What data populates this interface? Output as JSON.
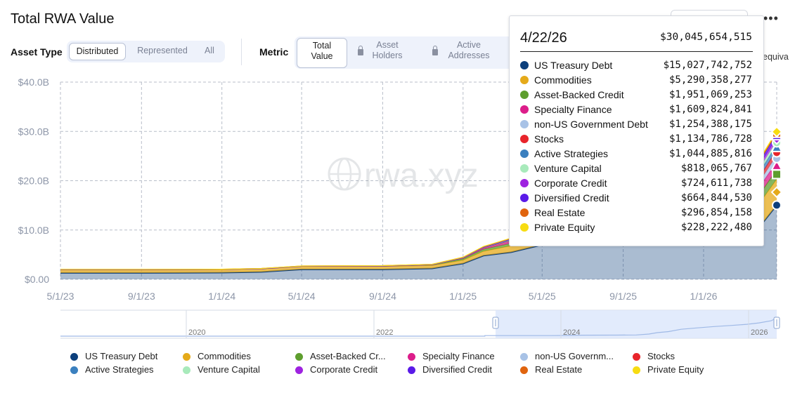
{
  "title": "Total RWA Value",
  "asset_type": {
    "label": "Asset Type",
    "options": [
      "Distributed",
      "Represented",
      "All"
    ],
    "selected": "Distributed"
  },
  "metric": {
    "label": "Metric",
    "options": [
      {
        "line1": "Total",
        "line2": "Value",
        "locked": false
      },
      {
        "line1": "Asset",
        "line2": "Holders",
        "locked": true
      },
      {
        "line1": "Active",
        "line2": "Addresses",
        "locked": true
      }
    ],
    "selected": "Total Value"
  },
  "equiv_fragment": "equiva",
  "colors": {
    "us_treasury_debt": "#0c3f7c",
    "commodities": "#e5aa1a",
    "asset_backed_credit": "#5e9e2e",
    "specialty_finance": "#dc1d8a",
    "non_us_government_debt": "#a8c2e6",
    "stocks": "#e8242b",
    "active_strategies": "#3b80bf",
    "venture_capital": "#a8eabb",
    "corporate_credit": "#9e22e0",
    "diversified_credit": "#5a1ae8",
    "real_estate": "#e0640e",
    "private_equity": "#f7dc12"
  },
  "watermark": "rwa.xyz",
  "tooltip": {
    "date": "4/22/26",
    "total": "$30,045,654,515",
    "rows": [
      {
        "name": "US Treasury Debt",
        "value": "$15,027,742,752",
        "color": "#0c3f7c"
      },
      {
        "name": "Commodities",
        "value": "$5,290,358,277",
        "color": "#e5aa1a"
      },
      {
        "name": "Asset-Backed Credit",
        "value": "$1,951,069,253",
        "color": "#5e9e2e"
      },
      {
        "name": "Specialty Finance",
        "value": "$1,609,824,841",
        "color": "#dc1d8a"
      },
      {
        "name": "non-US Government Debt",
        "value": "$1,254,388,175",
        "color": "#a8c2e6"
      },
      {
        "name": "Stocks",
        "value": "$1,134,786,728",
        "color": "#e8242b"
      },
      {
        "name": "Active Strategies",
        "value": "$1,044,885,816",
        "color": "#3b80bf"
      },
      {
        "name": "Venture Capital",
        "value": "$818,065,767",
        "color": "#a8eabb"
      },
      {
        "name": "Corporate Credit",
        "value": "$724,611,738",
        "color": "#9e22e0"
      },
      {
        "name": "Diversified Credit",
        "value": "$664,844,530",
        "color": "#5a1ae8"
      },
      {
        "name": "Real Estate",
        "value": "$296,854,158",
        "color": "#e0640e"
      },
      {
        "name": "Private Equity",
        "value": "$228,222,480",
        "color": "#f7dc12"
      }
    ]
  },
  "legend": [
    {
      "label": "US Treasury Debt",
      "color": "#0c3f7c"
    },
    {
      "label": "Commodities",
      "color": "#e5aa1a"
    },
    {
      "label": "Asset-Backed Cr...",
      "color": "#5e9e2e"
    },
    {
      "label": "Specialty Finance",
      "color": "#dc1d8a"
    },
    {
      "label": "non-US Governm...",
      "color": "#a8c2e6"
    },
    {
      "label": "Stocks",
      "color": "#e8242b"
    },
    {
      "label": "Active Strategies",
      "color": "#3b80bf"
    },
    {
      "label": "Venture Capital",
      "color": "#a8eabb"
    },
    {
      "label": "Corporate Credit",
      "color": "#9e22e0"
    },
    {
      "label": "Diversified Credit",
      "color": "#5a1ae8"
    },
    {
      "label": "Real Estate",
      "color": "#e0640e"
    },
    {
      "label": "Private Equity",
      "color": "#f7dc12"
    }
  ],
  "chart_data": {
    "type": "area",
    "stacked": true,
    "y_ticks": [
      "$0.00",
      "$10.0B",
      "$20.0B",
      "$30.0B",
      "$40.0B"
    ],
    "y_tick_values": [
      0,
      10,
      20,
      30,
      40
    ],
    "ylim": [
      0,
      40
    ],
    "y_unit": "billions USD",
    "x_ticks": [
      "5/1/23",
      "9/1/23",
      "1/1/24",
      "5/1/24",
      "9/1/24",
      "1/1/25",
      "5/1/25",
      "9/1/25",
      "1/1/26"
    ],
    "x_range": [
      "5/1/23",
      "4/22/26"
    ],
    "grid": true,
    "x": [
      "5/1/23",
      "9/1/23",
      "1/1/24",
      "3/1/24",
      "5/1/24",
      "9/1/24",
      "11/15/24",
      "1/1/25",
      "2/1/25",
      "3/15/25",
      "5/1/25",
      "7/1/25",
      "9/1/25",
      "11/1/25",
      "1/1/26",
      "2/15/26",
      "4/1/26",
      "4/22/26"
    ],
    "series": [
      {
        "name": "US Treasury Debt",
        "values": [
          1.3,
          1.3,
          1.35,
          1.5,
          2.0,
          2.0,
          2.2,
          3.2,
          4.8,
          5.5,
          7.0,
          7.5,
          7.8,
          8.0,
          8.5,
          9.5,
          11.5,
          15.03
        ]
      },
      {
        "name": "Commodities",
        "values": [
          0.6,
          0.6,
          0.6,
          0.6,
          0.6,
          0.6,
          0.6,
          0.7,
          0.9,
          1.3,
          2.5,
          2.9,
          3.2,
          3.5,
          4.0,
          4.4,
          4.9,
          5.29
        ]
      },
      {
        "name": "Asset-Backed Credit",
        "values": [
          0.05,
          0.05,
          0.05,
          0.05,
          0.05,
          0.1,
          0.15,
          0.3,
          0.4,
          0.5,
          0.6,
          0.8,
          1.0,
          1.2,
          1.4,
          1.6,
          1.8,
          1.95
        ]
      },
      {
        "name": "Specialty Finance",
        "values": [
          0,
          0,
          0,
          0,
          0,
          0,
          0.02,
          0.1,
          0.2,
          0.4,
          0.7,
          1.0,
          1.2,
          1.3,
          1.4,
          1.5,
          1.55,
          1.61
        ]
      },
      {
        "name": "non-US Government Debt",
        "values": [
          0,
          0,
          0,
          0,
          0,
          0,
          0,
          0.05,
          0.1,
          0.15,
          0.25,
          0.4,
          0.6,
          0.8,
          0.9,
          1.0,
          1.1,
          1.25
        ]
      },
      {
        "name": "Stocks",
        "values": [
          0,
          0,
          0,
          0,
          0,
          0,
          0,
          0,
          0.02,
          0.05,
          0.1,
          0.25,
          0.4,
          0.6,
          0.8,
          0.9,
          1.0,
          1.13
        ]
      },
      {
        "name": "Active Strategies",
        "values": [
          0,
          0,
          0,
          0,
          0,
          0,
          0,
          0.02,
          0.05,
          0.1,
          0.2,
          0.4,
          0.6,
          0.7,
          0.8,
          0.9,
          1.0,
          1.04
        ]
      },
      {
        "name": "Venture Capital",
        "values": [
          0,
          0,
          0,
          0,
          0,
          0,
          0,
          0.01,
          0.05,
          0.1,
          0.2,
          0.3,
          0.4,
          0.5,
          0.6,
          0.7,
          0.8,
          0.82
        ]
      },
      {
        "name": "Corporate Credit",
        "values": [
          0,
          0,
          0,
          0,
          0,
          0,
          0,
          0,
          0.01,
          0.05,
          0.1,
          0.2,
          0.4,
          0.5,
          0.55,
          0.6,
          0.7,
          0.72
        ]
      },
      {
        "name": "Diversified Credit",
        "values": [
          0,
          0,
          0,
          0,
          0,
          0,
          0,
          0,
          0.01,
          0.05,
          0.1,
          0.2,
          0.35,
          0.45,
          0.5,
          0.55,
          0.6,
          0.66
        ]
      },
      {
        "name": "Real Estate",
        "values": [
          0.05,
          0.05,
          0.05,
          0.05,
          0.06,
          0.07,
          0.08,
          0.1,
          0.1,
          0.12,
          0.15,
          0.18,
          0.2,
          0.22,
          0.25,
          0.27,
          0.29,
          0.3
        ]
      },
      {
        "name": "Private Equity",
        "values": [
          0,
          0,
          0,
          0,
          0,
          0,
          0,
          0.01,
          0.02,
          0.04,
          0.06,
          0.1,
          0.15,
          0.18,
          0.2,
          0.21,
          0.22,
          0.23
        ]
      }
    ],
    "navigator": {
      "x_ticks": [
        "2020",
        "2022",
        "2024",
        "2026"
      ],
      "selected_range": [
        "5/1/23",
        "4/22/26"
      ]
    }
  }
}
